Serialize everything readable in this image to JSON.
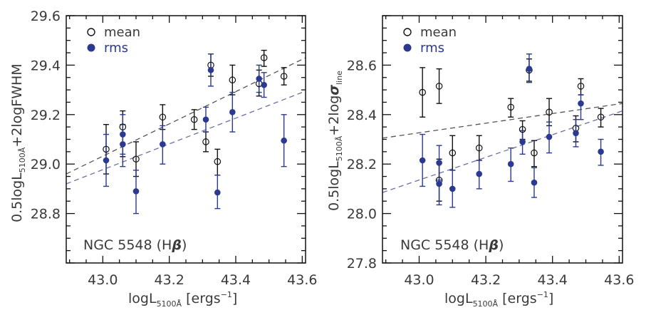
{
  "figure": {
    "colors": {
      "mean": "#111111",
      "rms": "#2b3990",
      "mean_fit": "#555555",
      "rms_fit": "#6a70a8",
      "axis": "#111111",
      "text": "#3a3a3a"
    }
  },
  "chart_data": [
    {
      "type": "scatter",
      "panel": "left",
      "title": "",
      "annotation": "NGC 5548 (Hβ)",
      "annotation_parts": {
        "main": "NGC 5548 (H",
        "symbol": "β",
        "close": ")"
      },
      "xlabel": "logL5100Å [ergs⁻¹]",
      "xlabel_parts": {
        "main": "logL",
        "sub": "5100Å",
        "bracket_open": " [ergs",
        "sup": "−1",
        "bracket_close": "]"
      },
      "ylabel": "0.5logL5100Å+2logFWHM",
      "ylabel_parts": {
        "pre": "0.5logL",
        "sub": "5100Å",
        "post": "+2logFWHM"
      },
      "xlim": [
        42.89,
        43.61
      ],
      "ylim": [
        28.6,
        29.6
      ],
      "xticks": [
        "43.0",
        "43.2",
        "43.4",
        "43.6"
      ],
      "yticks": [
        "28.8",
        "29.0",
        "29.2",
        "29.4",
        "29.6"
      ],
      "legend": {
        "position": "top-left",
        "entries": [
          {
            "label": "mean",
            "marker": "open-circle"
          },
          {
            "label": "rms",
            "marker": "filled-circle"
          }
        ]
      },
      "series": [
        {
          "name": "mean",
          "marker": "open-circle",
          "points": [
            {
              "x": 43.01,
              "y": 29.06,
              "ylo": 28.96,
              "yhi": 29.16
            },
            {
              "x": 43.06,
              "y": 29.15,
              "ylo": 29.03,
              "yhi": 29.215
            },
            {
              "x": 43.1,
              "y": 29.02,
              "ylo": 28.95,
              "yhi": 29.09
            },
            {
              "x": 43.18,
              "y": 29.19,
              "ylo": 29.14,
              "yhi": 29.24
            },
            {
              "x": 43.275,
              "y": 29.18,
              "ylo": 29.14,
              "yhi": 29.22
            },
            {
              "x": 43.31,
              "y": 29.09,
              "ylo": 29.05,
              "yhi": 29.13
            },
            {
              "x": 43.325,
              "y": 29.4,
              "ylo": 29.355,
              "yhi": 29.445
            },
            {
              "x": 43.345,
              "y": 29.01,
              "ylo": 28.955,
              "yhi": 29.06
            },
            {
              "x": 43.39,
              "y": 29.34,
              "ylo": 29.28,
              "yhi": 29.4
            },
            {
              "x": 43.47,
              "y": 29.325,
              "ylo": 29.275,
              "yhi": 29.38
            },
            {
              "x": 43.485,
              "y": 29.43,
              "ylo": 29.395,
              "yhi": 29.46
            },
            {
              "x": 43.545,
              "y": 29.355,
              "ylo": 29.32,
              "yhi": 29.39
            }
          ]
        },
        {
          "name": "rms",
          "marker": "filled-circle",
          "points": [
            {
              "x": 43.01,
              "y": 29.015,
              "ylo": 28.91,
              "yhi": 29.12
            },
            {
              "x": 43.06,
              "y": 29.12,
              "ylo": 29.04,
              "yhi": 29.2
            },
            {
              "x": 43.06,
              "y": 29.08,
              "ylo": 28.99,
              "yhi": 29.16
            },
            {
              "x": 43.1,
              "y": 28.89,
              "ylo": 28.8,
              "yhi": 28.975
            },
            {
              "x": 43.18,
              "y": 29.08,
              "ylo": 29.0,
              "yhi": 29.155
            },
            {
              "x": 43.31,
              "y": 29.18,
              "ylo": 29.13,
              "yhi": 29.23
            },
            {
              "x": 43.325,
              "y": 29.38,
              "ylo": 29.315,
              "yhi": 29.445
            },
            {
              "x": 43.345,
              "y": 28.885,
              "ylo": 28.82,
              "yhi": 28.955
            },
            {
              "x": 43.39,
              "y": 29.21,
              "ylo": 29.13,
              "yhi": 29.29
            },
            {
              "x": 43.47,
              "y": 29.345,
              "ylo": 29.29,
              "yhi": 29.4
            },
            {
              "x": 43.485,
              "y": 29.32,
              "ylo": 29.27,
              "yhi": 29.37
            },
            {
              "x": 43.545,
              "y": 29.095,
              "ylo": 28.99,
              "yhi": 29.2
            }
          ]
        }
      ],
      "fits": [
        {
          "name": "mean fit",
          "style": "dashed",
          "x": [
            42.89,
            43.61
          ],
          "y": [
            28.96,
            29.43
          ]
        },
        {
          "name": "rms fit",
          "style": "dashed",
          "x": [
            42.89,
            43.61
          ],
          "y": [
            28.92,
            29.295
          ]
        }
      ]
    },
    {
      "type": "scatter",
      "panel": "right",
      "title": "",
      "annotation": "NGC 5548 (Hβ)",
      "annotation_parts": {
        "main": "NGC 5548 (H",
        "symbol": "β",
        "close": ")"
      },
      "xlabel": "logL5100Å [ergs⁻¹]",
      "xlabel_parts": {
        "main": "logL",
        "sub": "5100Å",
        "bracket_open": " [ergs",
        "sup": "−1",
        "bracket_close": "]"
      },
      "ylabel": "0.5logL5100Å+2logσline",
      "ylabel_parts": {
        "pre": "0.5logL",
        "sub": "5100Å",
        "post": "+2log",
        "sigma": "σ",
        "sigma_sub": "line"
      },
      "xlim": [
        42.89,
        43.61
      ],
      "ylim": [
        27.8,
        28.8
      ],
      "xticks": [
        "43.0",
        "43.2",
        "43.4",
        "43.6"
      ],
      "yticks": [
        "27.8",
        "28.0",
        "28.2",
        "28.4",
        "28.6"
      ],
      "legend": {
        "position": "top-left",
        "entries": [
          {
            "label": "mean",
            "marker": "open-circle"
          },
          {
            "label": "rms",
            "marker": "filled-circle"
          }
        ]
      },
      "series": [
        {
          "name": "mean",
          "marker": "open-circle",
          "points": [
            {
              "x": 43.01,
              "y": 28.49,
              "ylo": 28.39,
              "yhi": 28.59
            },
            {
              "x": 43.06,
              "y": 28.515,
              "ylo": 28.445,
              "yhi": 28.585
            },
            {
              "x": 43.06,
              "y": 28.135,
              "ylo": 28.05,
              "yhi": 28.22
            },
            {
              "x": 43.1,
              "y": 28.245,
              "ylo": 28.175,
              "yhi": 28.315
            },
            {
              "x": 43.18,
              "y": 28.265,
              "ylo": 28.215,
              "yhi": 28.315
            },
            {
              "x": 43.275,
              "y": 28.43,
              "ylo": 28.39,
              "yhi": 28.465
            },
            {
              "x": 43.31,
              "y": 28.34,
              "ylo": 28.3,
              "yhi": 28.375
            },
            {
              "x": 43.33,
              "y": 28.58,
              "ylo": 28.535,
              "yhi": 28.625
            },
            {
              "x": 43.345,
              "y": 28.245,
              "ylo": 28.19,
              "yhi": 28.295
            },
            {
              "x": 43.39,
              "y": 28.41,
              "ylo": 28.355,
              "yhi": 28.465
            },
            {
              "x": 43.47,
              "y": 28.345,
              "ylo": 28.29,
              "yhi": 28.395
            },
            {
              "x": 43.485,
              "y": 28.515,
              "ylo": 28.48,
              "yhi": 28.545
            },
            {
              "x": 43.545,
              "y": 28.39,
              "ylo": 28.35,
              "yhi": 28.425
            }
          ]
        },
        {
          "name": "rms",
          "marker": "filled-circle",
          "points": [
            {
              "x": 43.01,
              "y": 28.215,
              "ylo": 28.11,
              "yhi": 28.32
            },
            {
              "x": 43.06,
              "y": 28.205,
              "ylo": 28.135,
              "yhi": 28.275
            },
            {
              "x": 43.06,
              "y": 28.12,
              "ylo": 28.035,
              "yhi": 28.205
            },
            {
              "x": 43.1,
              "y": 28.1,
              "ylo": 28.025,
              "yhi": 28.175
            },
            {
              "x": 43.18,
              "y": 28.16,
              "ylo": 28.1,
              "yhi": 28.215
            },
            {
              "x": 43.275,
              "y": 28.2,
              "ylo": 28.13,
              "yhi": 28.265
            },
            {
              "x": 43.31,
              "y": 28.29,
              "ylo": 28.24,
              "yhi": 28.335
            },
            {
              "x": 43.33,
              "y": 28.585,
              "ylo": 28.53,
              "yhi": 28.645
            },
            {
              "x": 43.345,
              "y": 28.125,
              "ylo": 28.065,
              "yhi": 28.185
            },
            {
              "x": 43.39,
              "y": 28.31,
              "ylo": 28.245,
              "yhi": 28.37
            },
            {
              "x": 43.47,
              "y": 28.325,
              "ylo": 28.27,
              "yhi": 28.38
            },
            {
              "x": 43.485,
              "y": 28.445,
              "ylo": 28.38,
              "yhi": 28.48
            },
            {
              "x": 43.545,
              "y": 28.25,
              "ylo": 28.195,
              "yhi": 28.3
            }
          ]
        }
      ],
      "fits": [
        {
          "name": "mean fit",
          "style": "dashed",
          "x": [
            42.89,
            43.61
          ],
          "y": [
            28.305,
            28.445
          ]
        },
        {
          "name": "rms fit",
          "style": "dashed",
          "x": [
            42.89,
            43.61
          ],
          "y": [
            28.085,
            28.415
          ]
        }
      ]
    }
  ]
}
